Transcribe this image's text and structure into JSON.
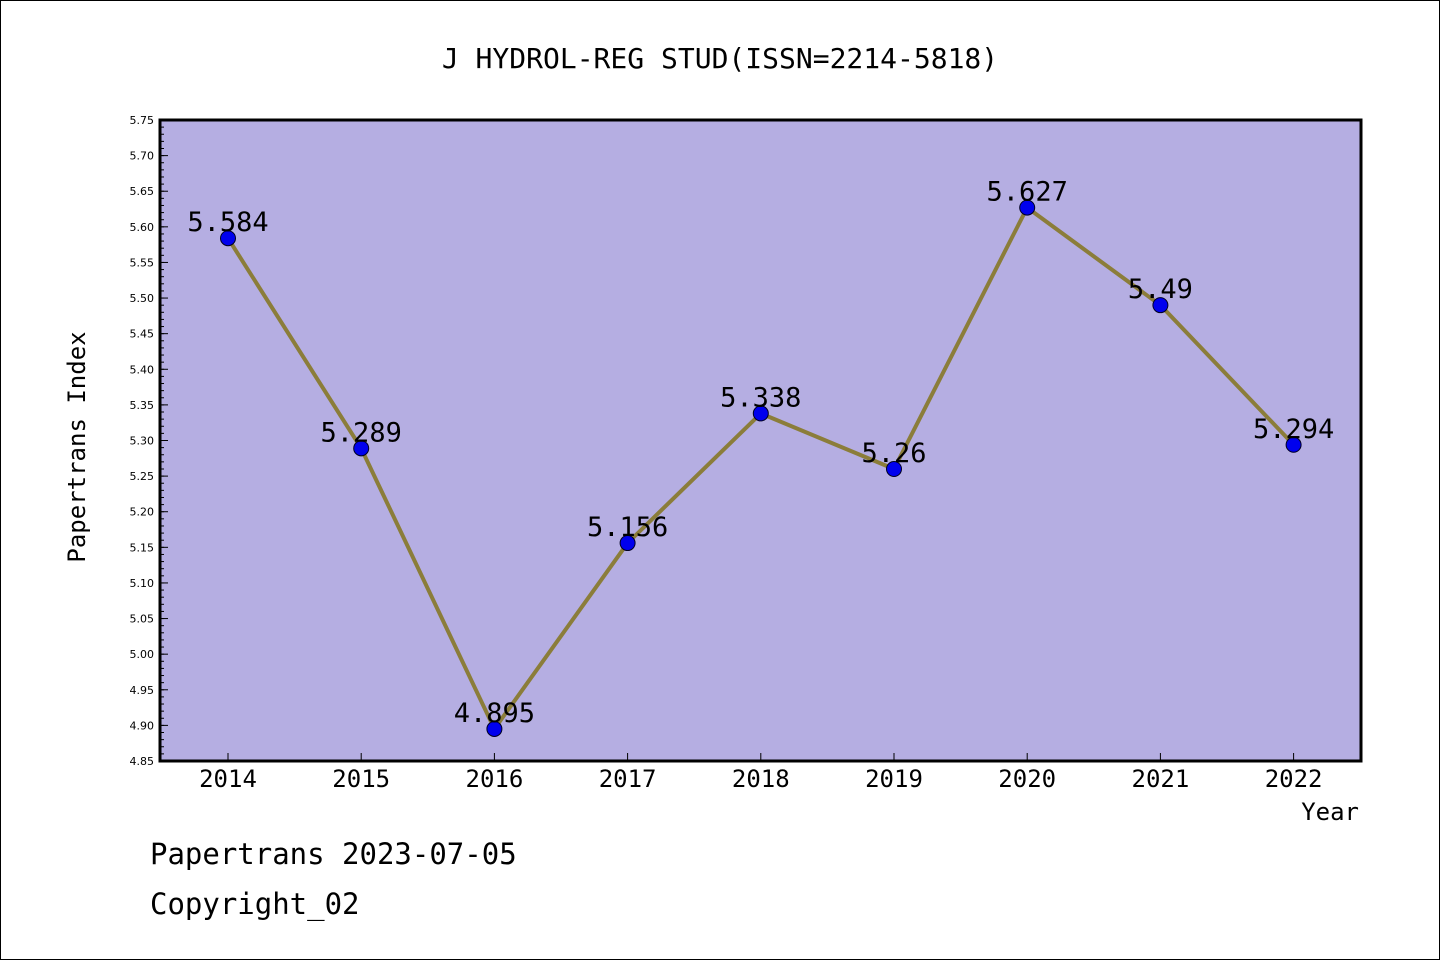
{
  "chart_data": {
    "type": "line",
    "title": "J HYDROL-REG STUD(ISSN=2214-5818)",
    "xlabel": "Year",
    "ylabel": "Papertrans Index",
    "x": [
      "2014",
      "2015",
      "2016",
      "2017",
      "2018",
      "2019",
      "2020",
      "2021",
      "2022"
    ],
    "values": [
      5.584,
      5.289,
      4.895,
      5.156,
      5.338,
      5.26,
      5.627,
      5.49,
      5.294
    ],
    "data_labels": [
      "5.584",
      "5.289",
      "4.895",
      "5.156",
      "5.338",
      "5.26",
      "5.627",
      "5.49",
      "5.294"
    ],
    "ylim": [
      4.85,
      5.75
    ],
    "yticks": [
      "4.85",
      "4.90",
      "4.95",
      "5.00",
      "5.05",
      "5.10",
      "5.15",
      "5.20",
      "5.25",
      "5.30",
      "5.35",
      "5.40",
      "5.45",
      "5.50",
      "5.55",
      "5.60",
      "5.65",
      "5.70",
      "5.75"
    ],
    "grid": false,
    "legend": "none",
    "colors": {
      "plot_background": "#b5aee2",
      "line": "#8b7d3a",
      "marker": "#0000ee"
    }
  },
  "footer": {
    "line1": "Papertrans 2023-07-05",
    "line2": "Copyright_02"
  }
}
